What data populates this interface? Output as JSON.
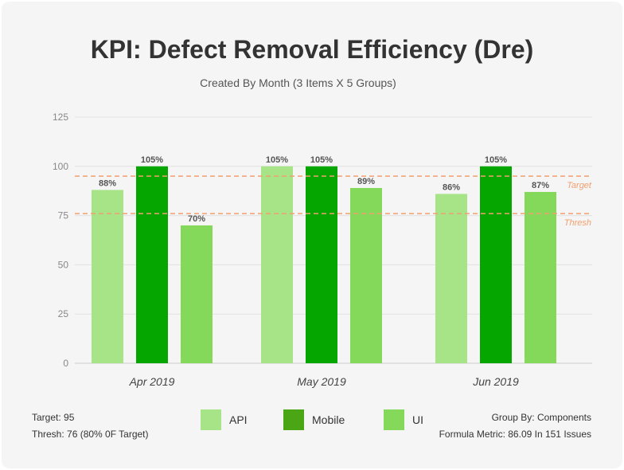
{
  "header": {
    "title": "KPI: Defect Removal Efficiency (Dre)",
    "subtitle": "Created By Month (3 Items X 5 Groups)"
  },
  "footer": {
    "target_line": "Target: 95",
    "thresh_line": "Thresh: 76 (80% 0F Target)",
    "group_by": "Group By: Components",
    "formula": "Formula Metric: 86.09 In 151 Issues"
  },
  "colors": {
    "api": "#a6e487",
    "mobile": "#06a600",
    "ui": "#84d85a",
    "mobile_legend": "#4aa614",
    "reference": "#f0a070"
  },
  "chart_data": {
    "type": "bar",
    "title": "KPI: Defect Removal Efficiency (Dre)",
    "subtitle": "Created By Month (3 Items X 5 Groups)",
    "categories": [
      "Apr 2019",
      "May 2019",
      "Jun 2019"
    ],
    "series": [
      {
        "name": "API",
        "values": [
          88,
          105,
          86
        ],
        "labels": [
          "88%",
          "105%",
          "86%"
        ]
      },
      {
        "name": "Mobile",
        "values": [
          105,
          105,
          105
        ],
        "labels": [
          "105%",
          "105%",
          "105%"
        ]
      },
      {
        "name": "UI",
        "values": [
          70,
          89,
          87
        ],
        "labels": [
          "70%",
          "89%",
          "87%"
        ]
      }
    ],
    "ylim": [
      0,
      125
    ],
    "yticks": [
      0,
      25,
      50,
      75,
      100,
      125
    ],
    "display_cap": 100,
    "reference_lines": [
      {
        "label": "Target",
        "value": 95
      },
      {
        "label": "Thresh",
        "value": 76
      }
    ],
    "grid": true,
    "legend_position": "bottom"
  }
}
